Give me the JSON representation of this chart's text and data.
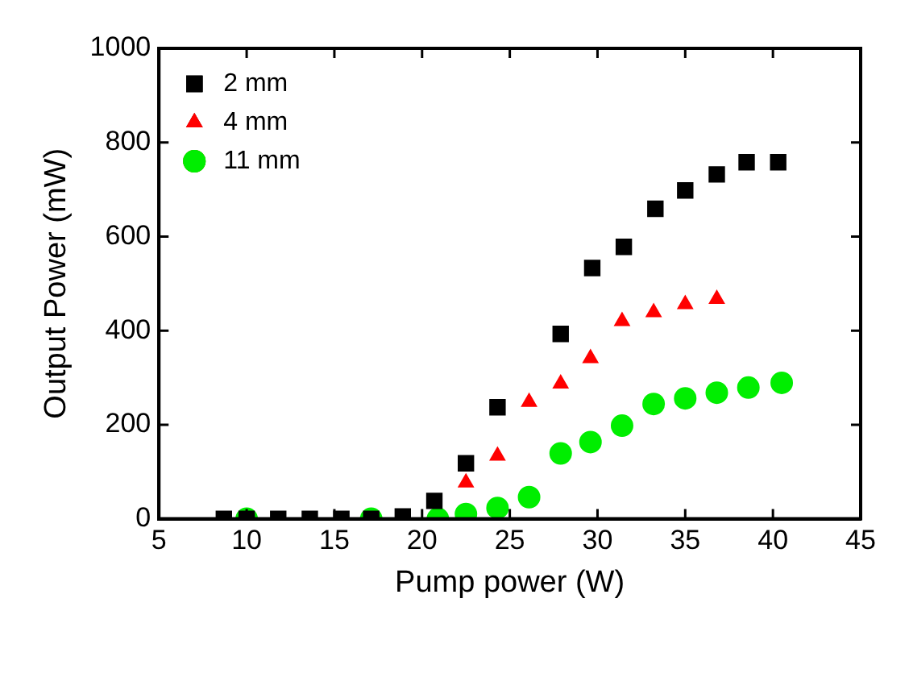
{
  "chart_data": {
    "type": "scatter",
    "xlabel": "Pump power (W)",
    "ylabel": "Output Power (mW)",
    "xlim": [
      5,
      45
    ],
    "xticks": [
      5,
      10,
      15,
      20,
      25,
      30,
      35,
      40,
      45
    ],
    "ylim": [
      0,
      1000
    ],
    "yticks": [
      0,
      200,
      400,
      600,
      800,
      1000
    ],
    "grid": false,
    "legend": "top left",
    "series": [
      {
        "name": "2 mm",
        "color": "#000000",
        "marker": "square",
        "x": [
          8.7,
          10,
          11.8,
          13.6,
          15.4,
          17.1,
          18.9,
          20.7,
          22.5,
          24.3,
          27.9,
          29.7,
          31.5,
          33.3,
          35.0,
          36.8,
          38.5,
          40.3
        ],
        "values": [
          0,
          0,
          0,
          0,
          0,
          0,
          5,
          38,
          118,
          237,
          393,
          533,
          578,
          659,
          698,
          732,
          758,
          758
        ]
      },
      {
        "name": "4 mm",
        "color": "#ff0000",
        "marker": "triangle",
        "x": [
          22.5,
          24.3,
          26.1,
          27.9,
          29.6,
          31.4,
          33.2,
          35.0,
          36.8
        ],
        "values": [
          77,
          134,
          248,
          287,
          341,
          420,
          439,
          456,
          467
        ]
      },
      {
        "name": "11 mm",
        "color": "#00ee00",
        "marker": "circle",
        "x": [
          10.0,
          17.1,
          20.9,
          22.5,
          24.3,
          26.1,
          27.9,
          29.6,
          31.4,
          33.2,
          35.0,
          36.8,
          38.6,
          40.5
        ],
        "values": [
          0,
          0,
          0,
          10,
          23,
          46,
          139,
          163,
          198,
          244,
          256,
          268,
          279,
          289
        ]
      }
    ]
  }
}
